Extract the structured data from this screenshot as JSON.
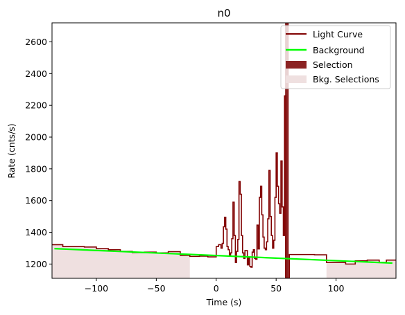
{
  "chart_data": {
    "type": "line",
    "title": "n0",
    "xlabel": "Time (s)",
    "ylabel": "Rate (cnts/s)",
    "xlim": [
      -137,
      150
    ],
    "ylim": [
      1110,
      2720
    ],
    "xticks": [
      -100,
      -50,
      0,
      50,
      100
    ],
    "xtick_labels": [
      "−100",
      "−50",
      "0",
      "50",
      "100"
    ],
    "yticks": [
      1200,
      1400,
      1600,
      1800,
      2000,
      2200,
      2400,
      2600
    ],
    "ytick_labels": [
      "1200",
      "1400",
      "1600",
      "1800",
      "2000",
      "2200",
      "2400",
      "2600"
    ],
    "legend_position": "top-right",
    "grid": false,
    "series": [
      {
        "name": "Light Curve",
        "kind": "step",
        "color": "#800000",
        "points": [
          [
            -137,
            1322
          ],
          [
            -128,
            1310
          ],
          [
            -110,
            1307
          ],
          [
            -100,
            1297
          ],
          [
            -90,
            1290
          ],
          [
            -80,
            1280
          ],
          [
            -70,
            1272
          ],
          [
            -60,
            1275
          ],
          [
            -50,
            1270
          ],
          [
            -40,
            1278
          ],
          [
            -30,
            1255
          ],
          [
            -22,
            1248
          ],
          [
            -14,
            1250
          ],
          [
            -7,
            1245
          ],
          [
            0,
            1310
          ],
          [
            2,
            1322
          ],
          [
            4,
            1300
          ],
          [
            5,
            1330
          ],
          [
            6,
            1435
          ],
          [
            7,
            1495
          ],
          [
            8,
            1420
          ],
          [
            9,
            1310
          ],
          [
            10,
            1290
          ],
          [
            11,
            1255
          ],
          [
            12,
            1270
          ],
          [
            13,
            1360
          ],
          [
            14,
            1590
          ],
          [
            15,
            1380
          ],
          [
            16,
            1210
          ],
          [
            17,
            1280
          ],
          [
            18,
            1355
          ],
          [
            19,
            1720
          ],
          [
            20,
            1640
          ],
          [
            21,
            1380
          ],
          [
            22,
            1270
          ],
          [
            23,
            1235
          ],
          [
            24,
            1285
          ],
          [
            25,
            1285
          ],
          [
            26,
            1195
          ],
          [
            27,
            1240
          ],
          [
            28,
            1185
          ],
          [
            29,
            1180
          ],
          [
            30,
            1275
          ],
          [
            31,
            1290
          ],
          [
            32,
            1235
          ],
          [
            33,
            1230
          ],
          [
            34,
            1445
          ],
          [
            35,
            1295
          ],
          [
            36,
            1620
          ],
          [
            37,
            1690
          ],
          [
            38,
            1510
          ],
          [
            39,
            1370
          ],
          [
            40,
            1300
          ],
          [
            41,
            1290
          ],
          [
            42,
            1340
          ],
          [
            43,
            1485
          ],
          [
            44,
            1790
          ],
          [
            45,
            1500
          ],
          [
            46,
            1380
          ],
          [
            47,
            1300
          ],
          [
            48,
            1350
          ],
          [
            49,
            1620
          ],
          [
            50,
            1900
          ],
          [
            51,
            1690
          ],
          [
            52,
            1580
          ],
          [
            53,
            1520
          ],
          [
            54,
            1850
          ],
          [
            55,
            1560
          ],
          [
            56,
            1380
          ],
          [
            57,
            2260
          ],
          [
            58,
            1110
          ],
          [
            60,
            1110
          ],
          [
            61,
            1260
          ],
          [
            82,
            1258
          ],
          [
            92,
            1210
          ],
          [
            108,
            1200
          ],
          [
            116,
            1220
          ],
          [
            126,
            1225
          ],
          [
            136,
            1210
          ],
          [
            142,
            1225
          ],
          [
            150,
            1225
          ]
        ]
      },
      {
        "name": "Background",
        "kind": "line",
        "color": "#00ff00",
        "points": [
          [
            -135,
            1297
          ],
          [
            147,
            1206
          ]
        ]
      },
      {
        "name": "Selection",
        "kind": "band",
        "color": "#8b2222",
        "ranges": [
          [
            57.5,
            60.5
          ]
        ]
      },
      {
        "name": "Bkg. Selections",
        "kind": "band",
        "color": "#efe0e0",
        "ranges": [
          [
            -137,
            -22
          ],
          [
            92,
            150
          ]
        ],
        "band_top": "curve"
      }
    ]
  }
}
